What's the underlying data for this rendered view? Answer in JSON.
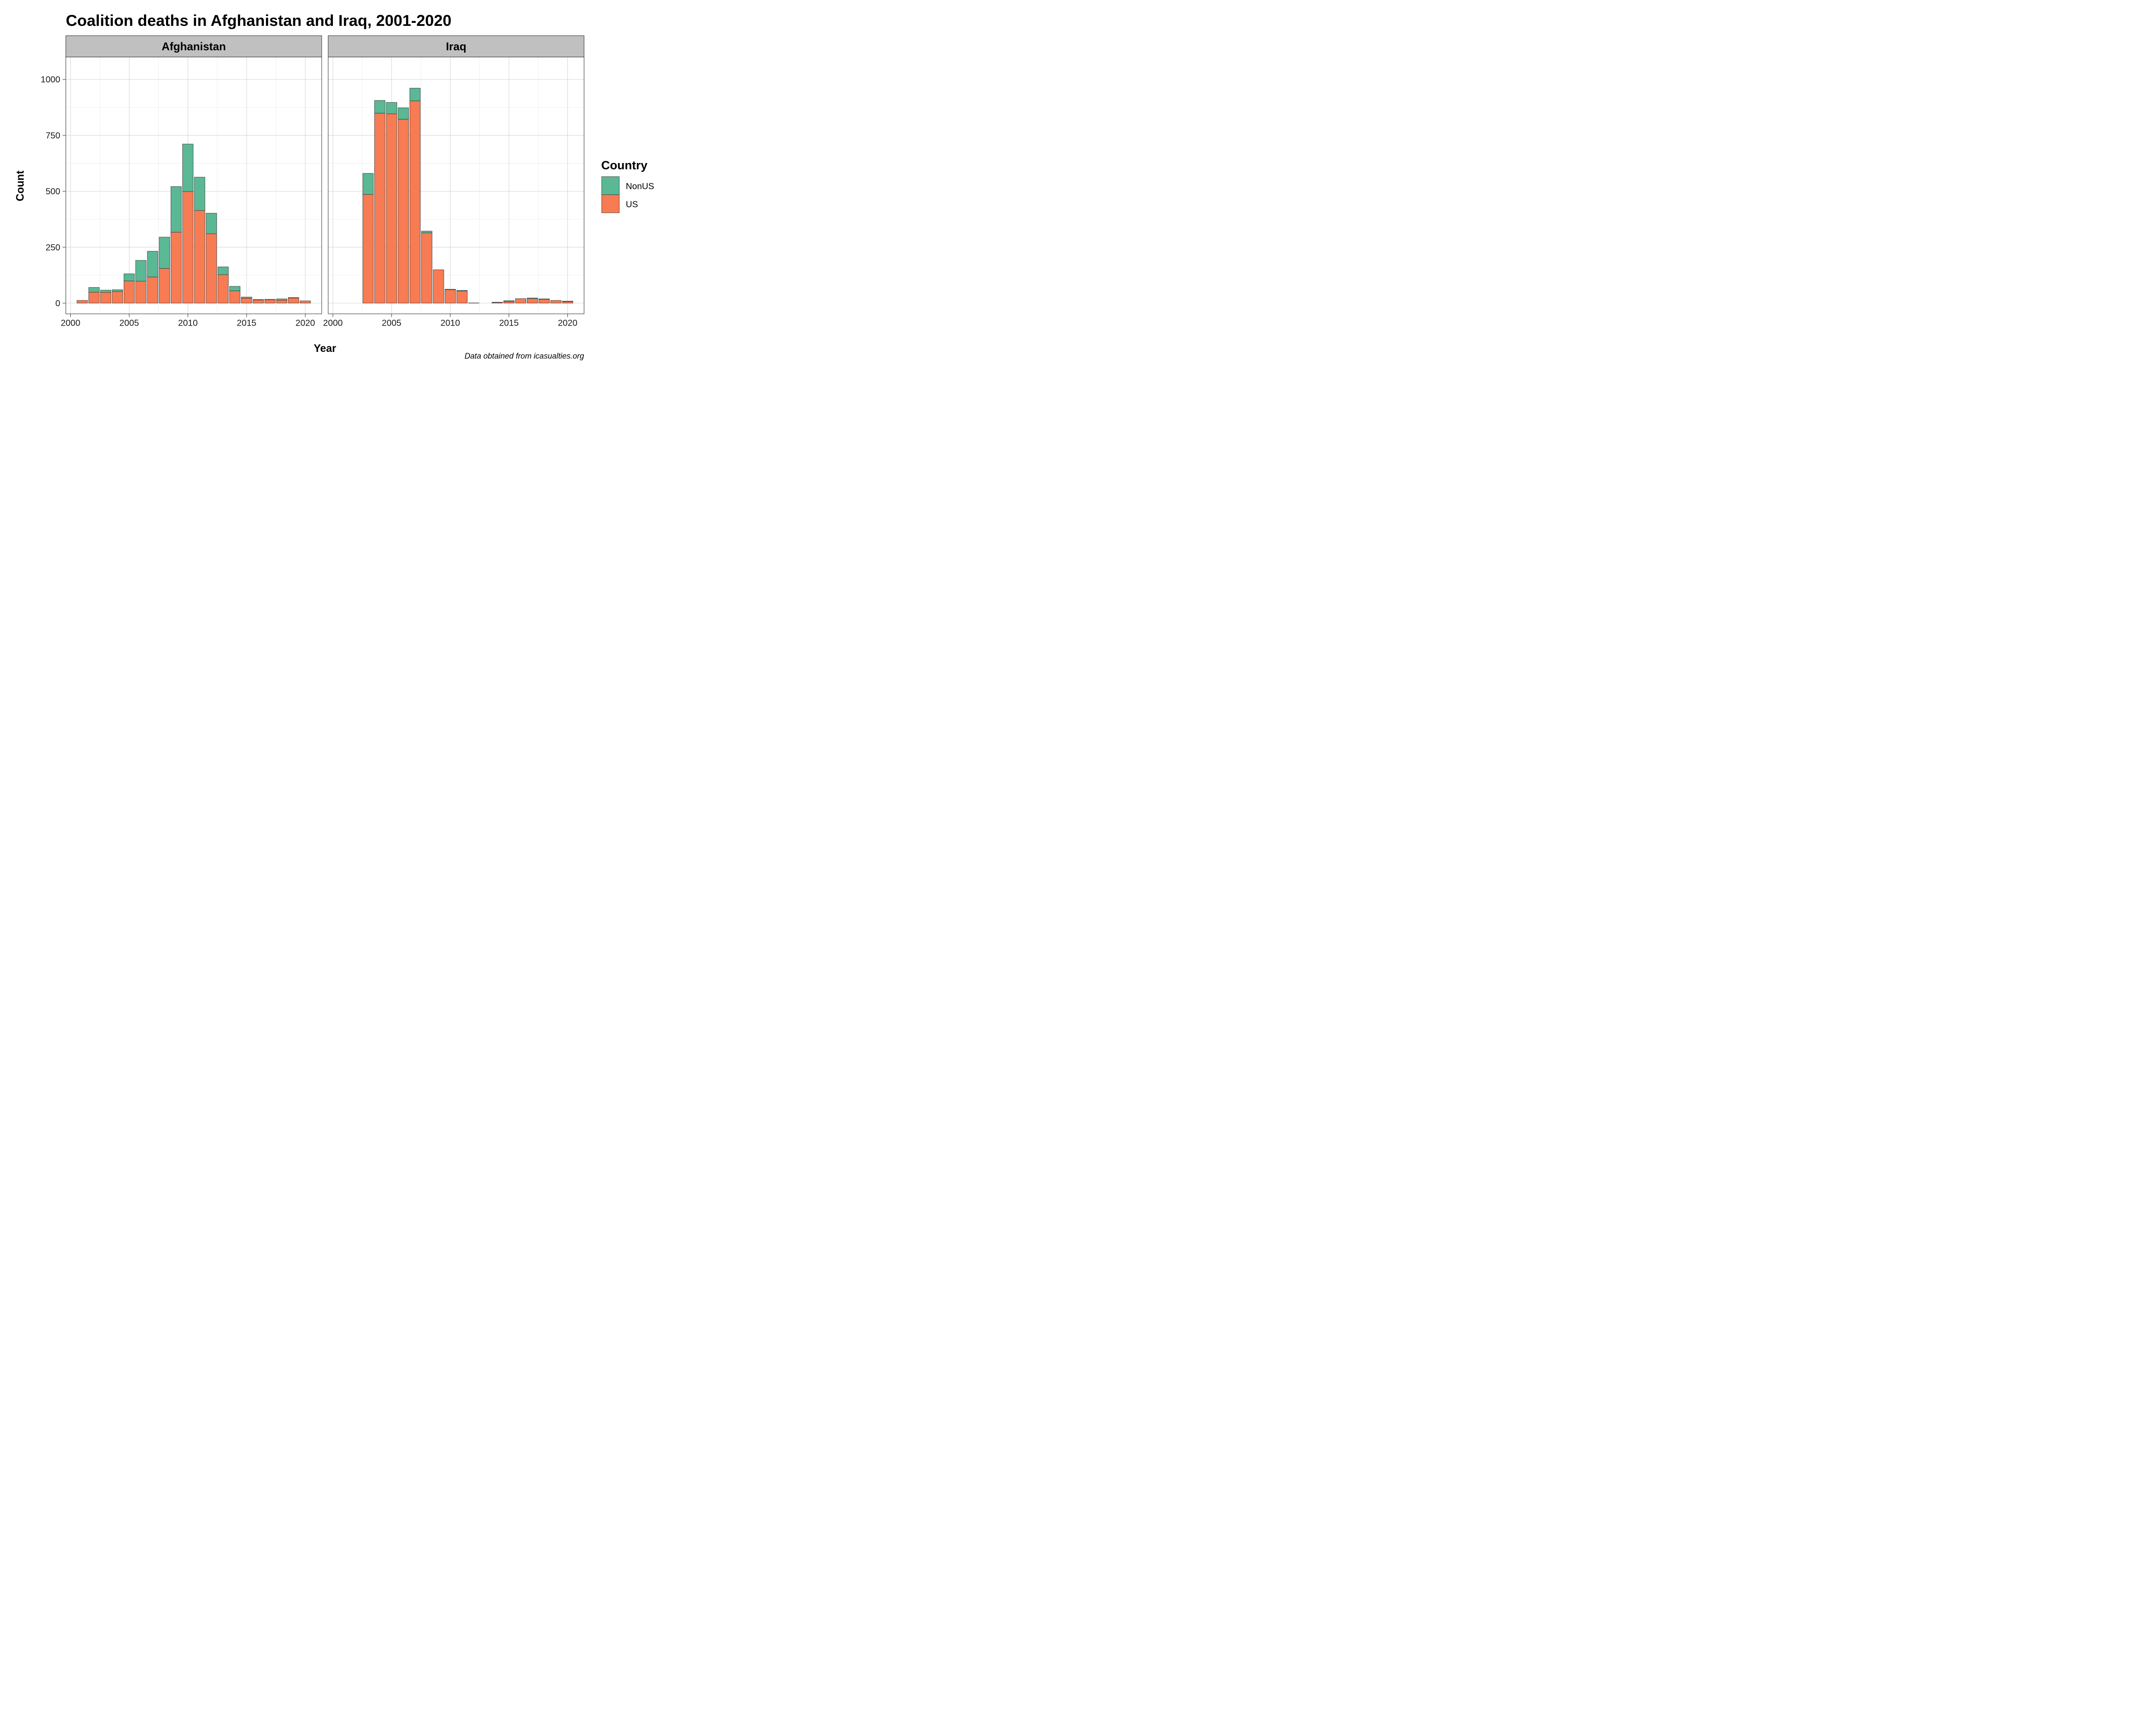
{
  "chart_data": {
    "type": "bar",
    "stacked": true,
    "title": "Coalition deaths in Afghanistan and Iraq, 2001-2020",
    "xlabel": "Year",
    "ylabel": "Count",
    "caption": "Data obtained from icasualties.org",
    "xlim": [
      1999.6,
      2021.4
    ],
    "ylim": [
      -48,
      1100
    ],
    "x_ticks": [
      2000,
      2005,
      2010,
      2015,
      2020
    ],
    "x_tick_labels": [
      "2000",
      "2005",
      "2010",
      "2015",
      "2020"
    ],
    "y_ticks": [
      0,
      250,
      500,
      750,
      1000
    ],
    "y_tick_labels": [
      "0",
      "250",
      "500",
      "750",
      "1000"
    ],
    "grid": true,
    "legend": {
      "title": "Country",
      "position": "right",
      "entries": [
        {
          "name": "NonUS",
          "color": "#5ab895"
        },
        {
          "name": "US",
          "color": "#f77b53"
        }
      ]
    },
    "panels": [
      {
        "name": "Afghanistan",
        "x": [
          2001,
          2002,
          2003,
          2004,
          2005,
          2006,
          2007,
          2008,
          2009,
          2010,
          2011,
          2012,
          2013,
          2014,
          2015,
          2016,
          2017,
          2018,
          2019,
          2020
        ],
        "series": [
          {
            "name": "US",
            "values": [
              12,
              49,
              48,
              52,
              99,
              98,
              117,
              155,
              317,
              499,
              414,
              310,
              127,
              55,
              22,
              14,
              15,
              13,
              23,
              10
            ]
          },
          {
            "name": "NonUS",
            "values": [
              0,
              21,
              10,
              8,
              32,
              93,
              115,
              140,
              204,
              212,
              149,
              92,
              35,
              20,
              5,
              2,
              2,
              6,
              2,
              0
            ]
          }
        ]
      },
      {
        "name": "Iraq",
        "x": [
          2003,
          2004,
          2005,
          2006,
          2007,
          2008,
          2009,
          2010,
          2011,
          2012,
          2013,
          2014,
          2015,
          2016,
          2017,
          2018,
          2019,
          2020
        ],
        "series": [
          {
            "name": "US",
            "values": [
              486,
              849,
              846,
              822,
              904,
              314,
              149,
              60,
              54,
              1,
              0,
              3,
              7,
              20,
              20,
              17,
              12,
              7
            ]
          },
          {
            "name": "NonUS",
            "values": [
              94,
              57,
              51,
              51,
              57,
              8,
              0,
              2,
              3,
              0,
              0,
              1,
              4,
              0,
              3,
              2,
              0,
              2
            ]
          }
        ]
      }
    ]
  }
}
